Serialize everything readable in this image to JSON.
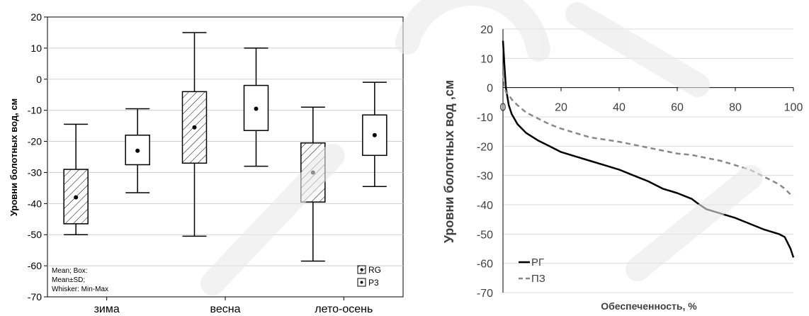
{
  "chart_data": [
    {
      "type": "box",
      "title": "",
      "xlabel": "",
      "ylabel": "Уровни болотных вод, см",
      "ylim": [
        -70,
        20
      ],
      "yticks": [
        20,
        10,
        0,
        -10,
        -20,
        -30,
        -40,
        -50,
        -60,
        -70
      ],
      "grid": true,
      "categories": [
        "зима",
        "весна",
        "лето-осень"
      ],
      "series": [
        {
          "name": "RG",
          "pattern": "hatched",
          "boxes": [
            {
              "category": "зима",
              "mean": -38,
              "sd_low": -46.5,
              "sd_high": -29,
              "min": -50,
              "max": -14.5
            },
            {
              "category": "весна",
              "mean": -15.5,
              "sd_low": -27,
              "sd_high": -4,
              "min": -50.5,
              "max": 15
            },
            {
              "category": "лето-осень",
              "mean": -30,
              "sd_low": -39.5,
              "sd_high": -20.5,
              "min": -58.5,
              "max": -9
            }
          ]
        },
        {
          "name": "P3",
          "pattern": "white",
          "boxes": [
            {
              "category": "зима",
              "mean": -23,
              "sd_low": -27.5,
              "sd_high": -18,
              "min": -36.5,
              "max": -9.5
            },
            {
              "category": "весна",
              "mean": -9.5,
              "sd_low": -16.5,
              "sd_high": -2,
              "min": -28,
              "max": 10
            },
            {
              "category": "лето-осень",
              "mean": -18,
              "sd_low": -24.5,
              "sd_high": -11.5,
              "min": -34.5,
              "max": -1
            }
          ]
        }
      ],
      "notes": [
        "Mean; Box:",
        "Mean±SD;",
        "Whisker: Min-Max"
      ],
      "legend": {
        "position": "bottom-right",
        "entries": [
          "RG",
          "P3"
        ]
      }
    },
    {
      "type": "line",
      "title": "",
      "xlabel": "Обеспеченность, %",
      "ylabel": "Уровни болотных вод ,см",
      "xlim": [
        0,
        100
      ],
      "ylim": [
        -70,
        20
      ],
      "xticks": [
        0,
        20,
        40,
        60,
        80,
        100
      ],
      "yticks": [
        20,
        10,
        0,
        -10,
        -20,
        -30,
        -40,
        -50,
        -60,
        -70
      ],
      "xtick_labels": [
        "0",
        "20",
        "40",
        "60",
        "80",
        "100"
      ],
      "grid": true,
      "legend": {
        "position": "bottom-left",
        "entries": [
          "РГ",
          "ПЗ"
        ]
      },
      "series": [
        {
          "name": "РГ",
          "style": "solid",
          "color": "#000000",
          "x": [
            0,
            0.5,
            1,
            2,
            3,
            5,
            8,
            12,
            16,
            20,
            25,
            30,
            35,
            40,
            45,
            50,
            55,
            60,
            65,
            67,
            70,
            75,
            80,
            85,
            90,
            95,
            97,
            98,
            99,
            100
          ],
          "y": [
            16,
            8,
            0,
            -6,
            -9,
            -12.5,
            -15.5,
            -18,
            -20,
            -22,
            -23.5,
            -25,
            -26.5,
            -28,
            -30,
            -32,
            -34.5,
            -36,
            -38,
            -39.5,
            -41.5,
            -43,
            -44.5,
            -46.5,
            -48.5,
            -50,
            -51,
            -53,
            -55,
            -58
          ]
        },
        {
          "name": "ПЗ",
          "style": "dashed",
          "color": "#888888",
          "x": [
            0,
            0.5,
            1,
            2,
            3,
            5,
            8,
            12,
            16,
            20,
            25,
            30,
            40,
            50,
            60,
            65,
            70,
            75,
            80,
            85,
            90,
            95,
            97,
            98,
            99,
            100
          ],
          "y": [
            5,
            1,
            -1.5,
            -2.5,
            -4,
            -6,
            -8.5,
            -10.5,
            -12.5,
            -14,
            -15.5,
            -17,
            -18.5,
            -20.5,
            -22.5,
            -23,
            -24,
            -25,
            -26.5,
            -28,
            -30.5,
            -33,
            -34.5,
            -35.5,
            -36.5,
            -37
          ]
        }
      ]
    }
  ]
}
